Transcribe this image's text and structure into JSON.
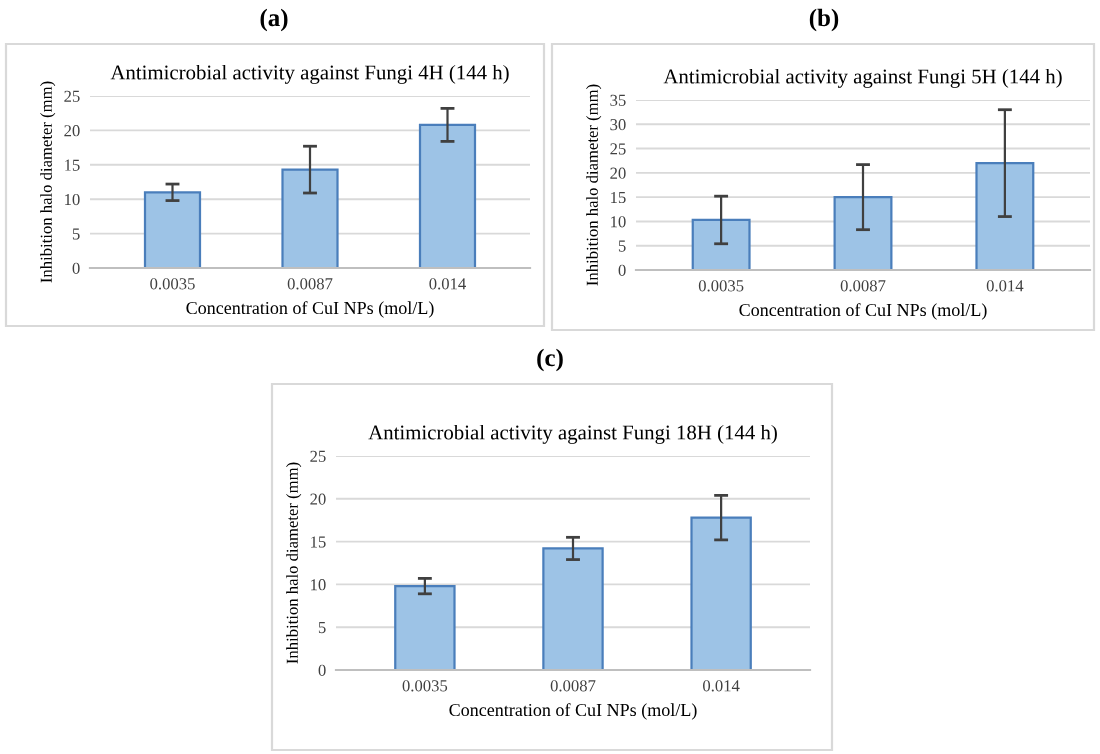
{
  "chart_data": [
    {
      "type": "bar",
      "annotations": [
        "(a)"
      ],
      "title": "Antimicrobial activity against Fungi 4H (144 h)",
      "xlabel": "Concentration of CuI NPs (mol/L)",
      "ylabel": "Inhibition halo diameter (mm)",
      "categories": [
        "0.0035",
        "0.0087",
        "0.014"
      ],
      "values": [
        11,
        14.3,
        20.8
      ],
      "errors": [
        1.2,
        3.4,
        2.4
      ],
      "color": "#9dc3e6",
      "ylim": [
        0,
        25
      ],
      "yticks": [
        0,
        5,
        10,
        15,
        20,
        25
      ],
      "grid": "y"
    },
    {
      "type": "bar",
      "annotations": [
        "(b)"
      ],
      "title": "Antimicrobial activity against Fungi 5H (144 h)",
      "xlabel": "Concentration of CuI NPs (mol/L)",
      "ylabel": "Inhibition halo diameter (mm)",
      "categories": [
        "0.0035",
        "0.0087",
        "0.014"
      ],
      "values": [
        10.3,
        15,
        22
      ],
      "errors": [
        4.9,
        6.7,
        11
      ],
      "color": "#9dc3e6",
      "ylim": [
        0,
        35
      ],
      "yticks": [
        0,
        5,
        10,
        15,
        20,
        25,
        30,
        35
      ],
      "grid": "y"
    },
    {
      "type": "bar",
      "annotations": [
        "(c)"
      ],
      "title": "Antimicrobial activity against Fungi 18H (144 h)",
      "xlabel": "Concentration of CuI NPs (mol/L)",
      "ylabel": "Inhibition halo diameter (mm)",
      "categories": [
        "0.0035",
        "0.0087",
        "0.014"
      ],
      "values": [
        9.8,
        14.2,
        17.8
      ],
      "errors": [
        0.9,
        1.3,
        2.6
      ],
      "color": "#9dc3e6",
      "ylim": [
        0,
        25
      ],
      "yticks": [
        0,
        5,
        10,
        15,
        20,
        25
      ],
      "grid": "y"
    }
  ]
}
